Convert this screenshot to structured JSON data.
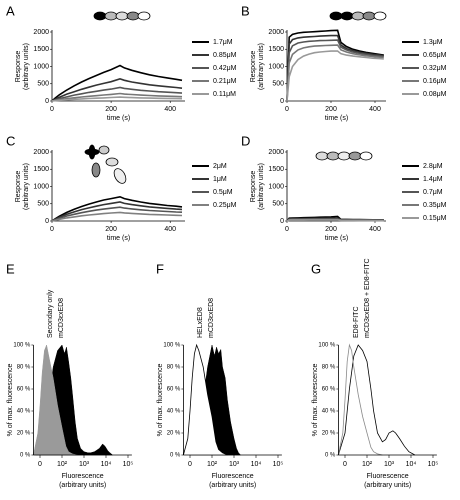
{
  "chart_data": [
    {
      "type": "line",
      "label": "A",
      "ylabel": [
        "Response",
        "(arbitrary units)"
      ],
      "xlabel": "time (s)",
      "xlim": [
        0,
        450
      ],
      "ylim": [
        0,
        2000
      ],
      "xticks": [
        0,
        200,
        400
      ],
      "yticks": [
        0,
        500,
        1000,
        1500,
        2000
      ],
      "x": [
        0,
        10,
        25,
        50,
        75,
        100,
        125,
        150,
        175,
        200,
        230,
        245,
        270,
        300,
        330,
        360,
        390,
        420,
        440
      ],
      "series": [
        {
          "name": "1.7μM",
          "color": "#000000",
          "values": [
            0,
            80,
            180,
            320,
            440,
            550,
            650,
            740,
            830,
            910,
            1030,
            960,
            890,
            820,
            760,
            710,
            670,
            630,
            600
          ]
        },
        {
          "name": "0.85μM",
          "color": "#333333",
          "values": [
            0,
            50,
            110,
            200,
            270,
            340,
            400,
            460,
            510,
            560,
            640,
            600,
            550,
            510,
            470,
            440,
            415,
            390,
            370
          ]
        },
        {
          "name": "0.42μM",
          "color": "#555555",
          "values": [
            0,
            30,
            70,
            120,
            170,
            210,
            250,
            280,
            315,
            345,
            390,
            365,
            340,
            310,
            290,
            270,
            255,
            240,
            230
          ]
        },
        {
          "name": "0.21μM",
          "color": "#777777",
          "values": [
            0,
            17,
            38,
            67,
            92,
            115,
            137,
            155,
            174,
            191,
            216,
            200,
            187,
            172,
            160,
            149,
            140,
            132,
            126
          ]
        },
        {
          "name": "0.11μM",
          "color": "#999999",
          "values": [
            0,
            9,
            20,
            35,
            48,
            60,
            72,
            81,
            91,
            100,
            113,
            106,
            98,
            90,
            84,
            78,
            74,
            69,
            66
          ]
        }
      ]
    },
    {
      "type": "line",
      "label": "B",
      "ylabel": [
        "Response",
        "(arbitrary units)"
      ],
      "xlabel": "time (s)",
      "xlim": [
        0,
        450
      ],
      "ylim": [
        0,
        2000
      ],
      "xticks": [
        0,
        200,
        400
      ],
      "yticks": [
        0,
        500,
        1000,
        1500,
        2000
      ],
      "x": [
        0,
        10,
        25,
        50,
        75,
        100,
        125,
        150,
        175,
        200,
        230,
        245,
        270,
        300,
        330,
        360,
        390,
        420,
        440
      ],
      "series": [
        {
          "name": "1.3μM",
          "color": "#000000",
          "values": [
            0,
            1850,
            1930,
            1970,
            1990,
            2000,
            2010,
            2020,
            2030,
            2040,
            2050,
            1700,
            1580,
            1500,
            1450,
            1410,
            1380,
            1350,
            1330
          ]
        },
        {
          "name": "0.65μM",
          "color": "#333333",
          "values": [
            0,
            1650,
            1780,
            1830,
            1850,
            1860,
            1870,
            1880,
            1890,
            1895,
            1900,
            1620,
            1520,
            1460,
            1410,
            1380,
            1350,
            1330,
            1310
          ]
        },
        {
          "name": "0.32μM",
          "color": "#555555",
          "values": [
            0,
            1400,
            1600,
            1680,
            1710,
            1730,
            1740,
            1750,
            1755,
            1760,
            1765,
            1560,
            1480,
            1420,
            1380,
            1350,
            1320,
            1300,
            1290
          ]
        },
        {
          "name": "0.16μM",
          "color": "#777777",
          "values": [
            0,
            1100,
            1350,
            1480,
            1540,
            1570,
            1590,
            1600,
            1610,
            1615,
            1620,
            1480,
            1420,
            1370,
            1340,
            1310,
            1290,
            1270,
            1260
          ]
        },
        {
          "name": "0.08μM",
          "color": "#999999",
          "values": [
            0,
            700,
            1000,
            1200,
            1300,
            1360,
            1400,
            1420,
            1435,
            1445,
            1450,
            1370,
            1330,
            1300,
            1280,
            1260,
            1240,
            1230,
            1220
          ]
        }
      ]
    },
    {
      "type": "line",
      "label": "C",
      "ylabel": [
        "Response",
        "(arbitrary units)"
      ],
      "xlabel": "time (s)",
      "xlim": [
        0,
        450
      ],
      "ylim": [
        0,
        2000
      ],
      "xticks": [
        0,
        200,
        400
      ],
      "yticks": [
        0,
        500,
        1000,
        1500,
        2000
      ],
      "x": [
        0,
        10,
        25,
        50,
        75,
        100,
        125,
        150,
        175,
        200,
        230,
        245,
        270,
        300,
        330,
        360,
        390,
        420,
        440
      ],
      "series": [
        {
          "name": "2μM",
          "color": "#000000",
          "values": [
            0,
            60,
            140,
            250,
            340,
            420,
            490,
            550,
            610,
            650,
            700,
            650,
            600,
            550,
            510,
            480,
            450,
            430,
            410
          ]
        },
        {
          "name": "1μM",
          "color": "#333333",
          "values": [
            0,
            45,
            110,
            195,
            265,
            330,
            380,
            430,
            475,
            510,
            550,
            510,
            475,
            440,
            410,
            385,
            365,
            345,
            335
          ]
        },
        {
          "name": "0.5μM",
          "color": "#555555",
          "values": [
            0,
            35,
            80,
            145,
            195,
            240,
            280,
            315,
            345,
            370,
            400,
            375,
            350,
            325,
            305,
            290,
            275,
            262,
            255
          ]
        },
        {
          "name": "0.25μM",
          "color": "#808080",
          "values": [
            0,
            20,
            50,
            90,
            120,
            150,
            175,
            195,
            215,
            232,
            250,
            235,
            220,
            205,
            192,
            182,
            173,
            165,
            160
          ]
        }
      ]
    },
    {
      "type": "line",
      "label": "D",
      "ylabel": [
        "Response",
        "(arbitrary units)"
      ],
      "xlabel": "time (s)",
      "xlim": [
        0,
        450
      ],
      "ylim": [
        0,
        2000
      ],
      "xticks": [
        0,
        200,
        400
      ],
      "yticks": [
        0,
        500,
        1000,
        1500,
        2000
      ],
      "x": [
        0,
        10,
        25,
        50,
        75,
        100,
        125,
        150,
        175,
        200,
        230,
        245,
        270,
        300,
        330,
        360,
        390,
        420,
        440
      ],
      "series": [
        {
          "name": "2.8μM",
          "color": "#000000",
          "values": [
            0,
            80,
            85,
            90,
            95,
            100,
            105,
            110,
            115,
            120,
            130,
            50,
            45,
            42,
            40,
            38,
            36,
            35,
            35
          ]
        },
        {
          "name": "1.4μM",
          "color": "#333333",
          "values": [
            0,
            60,
            65,
            68,
            70,
            72,
            74,
            76,
            78,
            80,
            82,
            40,
            38,
            36,
            34,
            32,
            31,
            30,
            30
          ]
        },
        {
          "name": "0.7μM",
          "color": "#555555",
          "values": [
            0,
            45,
            48,
            50,
            52,
            53,
            54,
            55,
            56,
            57,
            58,
            30,
            28,
            27,
            26,
            25,
            24,
            24,
            24
          ]
        },
        {
          "name": "0.35μM",
          "color": "#777777",
          "values": [
            0,
            35,
            37,
            38,
            39,
            40,
            41,
            41,
            42,
            42,
            43,
            22,
            21,
            20,
            19,
            19,
            18,
            18,
            18
          ]
        },
        {
          "name": "0.15μM",
          "color": "#999999",
          "values": [
            0,
            25,
            26,
            27,
            27,
            28,
            28,
            29,
            29,
            29,
            30,
            15,
            14,
            14,
            13,
            13,
            13,
            13,
            13
          ]
        }
      ]
    },
    {
      "type": "histogram-area",
      "label": "E",
      "ylabel": "% of max. fluorescence",
      "xlabel": [
        "Fluorescence",
        "(arbitrary units)"
      ],
      "xscale": "biexponential",
      "xlim": [
        -30,
        150000
      ],
      "ylim": [
        0,
        100
      ],
      "xticks": [
        0,
        {
          "value": 100,
          "label": "10²"
        },
        {
          "value": 1000,
          "label": "10³"
        },
        {
          "value": 10000,
          "label": "10⁴"
        },
        {
          "value": 100000,
          "label": "10⁵"
        }
      ],
      "yticks": [
        {
          "value": 0,
          "label": "0 %"
        },
        {
          "value": 20,
          "label": "20 %"
        },
        {
          "value": 40,
          "label": "40 %"
        },
        {
          "value": 60,
          "label": "60 %"
        },
        {
          "value": 80,
          "label": "80 %"
        },
        {
          "value": 100,
          "label": "100 %"
        }
      ],
      "series": [
        {
          "name": "Secondary only",
          "color": "#9a9a9a",
          "filled": true,
          "x": [
            -30,
            -10,
            0,
            10,
            20,
            30,
            40,
            60,
            80,
            100,
            150,
            200,
            300,
            500
          ],
          "values": [
            0,
            20,
            45,
            75,
            95,
            100,
            90,
            70,
            45,
            25,
            8,
            3,
            1,
            0
          ]
        },
        {
          "name": "mCD3εxED8",
          "color": "#000000",
          "filled": true,
          "x": [
            -20,
            0,
            20,
            40,
            60,
            80,
            100,
            130,
            160,
            200,
            250,
            300,
            400,
            500,
            700,
            1000,
            1500,
            2000,
            3000,
            5000,
            7000,
            9000,
            12000,
            15000,
            20000
          ],
          "values": [
            0,
            5,
            20,
            50,
            80,
            95,
            100,
            92,
            98,
            85,
            70,
            55,
            30,
            15,
            6,
            3,
            2,
            2,
            3,
            6,
            10,
            8,
            4,
            2,
            0
          ]
        }
      ]
    },
    {
      "type": "histogram-area",
      "label": "F",
      "ylabel": "% of max. fluorescence",
      "xlabel": [
        "Fluorescence",
        "(arbitrary units)"
      ],
      "xscale": "biexponential",
      "xlim": [
        -30,
        150000
      ],
      "ylim": [
        0,
        100
      ],
      "xticks": [
        0,
        {
          "value": 100,
          "label": "10²"
        },
        {
          "value": 1000,
          "label": "10³"
        },
        {
          "value": 10000,
          "label": "10⁴"
        },
        {
          "value": 100000,
          "label": "10⁵"
        }
      ],
      "yticks": [
        {
          "value": 0,
          "label": "0 %"
        },
        {
          "value": 20,
          "label": "20 %"
        },
        {
          "value": 40,
          "label": "40 %"
        },
        {
          "value": 60,
          "label": "60 %"
        },
        {
          "value": 80,
          "label": "80 %"
        },
        {
          "value": 100,
          "label": "100 %"
        }
      ],
      "series": [
        {
          "name": "HELxED8",
          "color": "#000000",
          "filled": false,
          "x": [
            -30,
            -10,
            0,
            10,
            20,
            30,
            40,
            60,
            80,
            100,
            150,
            200,
            300,
            500
          ],
          "values": [
            0,
            15,
            40,
            70,
            92,
            100,
            95,
            80,
            55,
            35,
            12,
            5,
            2,
            0
          ]
        },
        {
          "name": "mCD3εxED8",
          "color": "#000000",
          "filled": true,
          "x": [
            0,
            20,
            40,
            60,
            80,
            100,
            130,
            160,
            200,
            250,
            300,
            400,
            500,
            700,
            1000,
            1300,
            1600,
            2000
          ],
          "values": [
            0,
            5,
            20,
            50,
            80,
            100,
            90,
            98,
            92,
            96,
            80,
            70,
            50,
            30,
            15,
            6,
            2,
            0
          ]
        }
      ]
    },
    {
      "type": "histogram-area",
      "label": "G",
      "ylabel": "% of max. fluorescence",
      "xlabel": [
        "Fluorescence",
        "(arbitrary units)"
      ],
      "xscale": "biexponential",
      "xlim": [
        -30,
        150000
      ],
      "ylim": [
        0,
        100
      ],
      "xticks": [
        0,
        {
          "value": 100,
          "label": "10²"
        },
        {
          "value": 1000,
          "label": "10³"
        },
        {
          "value": 10000,
          "label": "10⁴"
        },
        {
          "value": 100000,
          "label": "10⁵"
        }
      ],
      "yticks": [
        {
          "value": 0,
          "label": "0 %"
        },
        {
          "value": 20,
          "label": "20 %"
        },
        {
          "value": 40,
          "label": "40 %"
        },
        {
          "value": 60,
          "label": "60 %"
        },
        {
          "value": 80,
          "label": "80 %"
        },
        {
          "value": 100,
          "label": "100 %"
        }
      ],
      "series": [
        {
          "name": "ED8-FITC",
          "color": "#8a8a8a",
          "filled": false,
          "x": [
            -30,
            -10,
            0,
            10,
            20,
            30,
            40,
            60,
            80,
            100,
            150,
            200,
            300,
            500
          ],
          "values": [
            0,
            20,
            50,
            85,
            100,
            95,
            80,
            55,
            35,
            20,
            7,
            3,
            1,
            0
          ]
        },
        {
          "name": "mCD3εxED8 + ED8-FITC",
          "color": "#000000",
          "filled": false,
          "x": [
            -30,
            0,
            20,
            40,
            60,
            80,
            100,
            150,
            200,
            300,
            500,
            700,
            1000,
            1500,
            2000,
            3000,
            5000,
            8000,
            15000
          ],
          "values": [
            0,
            20,
            60,
            90,
            100,
            95,
            85,
            60,
            40,
            20,
            12,
            14,
            20,
            22,
            20,
            15,
            8,
            3,
            0
          ]
        }
      ]
    }
  ]
}
